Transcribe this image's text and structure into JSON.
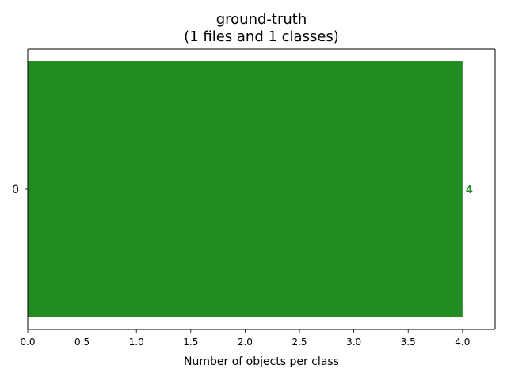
{
  "chart_data": {
    "type": "bar",
    "orientation": "horizontal",
    "title": "ground-truth",
    "subtitle": "(1 files and 1 classes)",
    "xlabel": "Number of objects per class",
    "ylabel": "",
    "categories": [
      "0"
    ],
    "values": [
      4
    ],
    "value_labels": [
      "4"
    ],
    "xlim": [
      0,
      4.3
    ],
    "xticks": [
      0.0,
      0.5,
      1.0,
      1.5,
      2.0,
      2.5,
      3.0,
      3.5,
      4.0
    ],
    "xtick_labels": [
      "0.0",
      "0.5",
      "1.0",
      "1.5",
      "2.0",
      "2.5",
      "3.0",
      "3.5",
      "4.0"
    ],
    "grid": false,
    "legend": "none",
    "colors": {
      "bar": "#228b22",
      "label": "#228b22"
    }
  }
}
